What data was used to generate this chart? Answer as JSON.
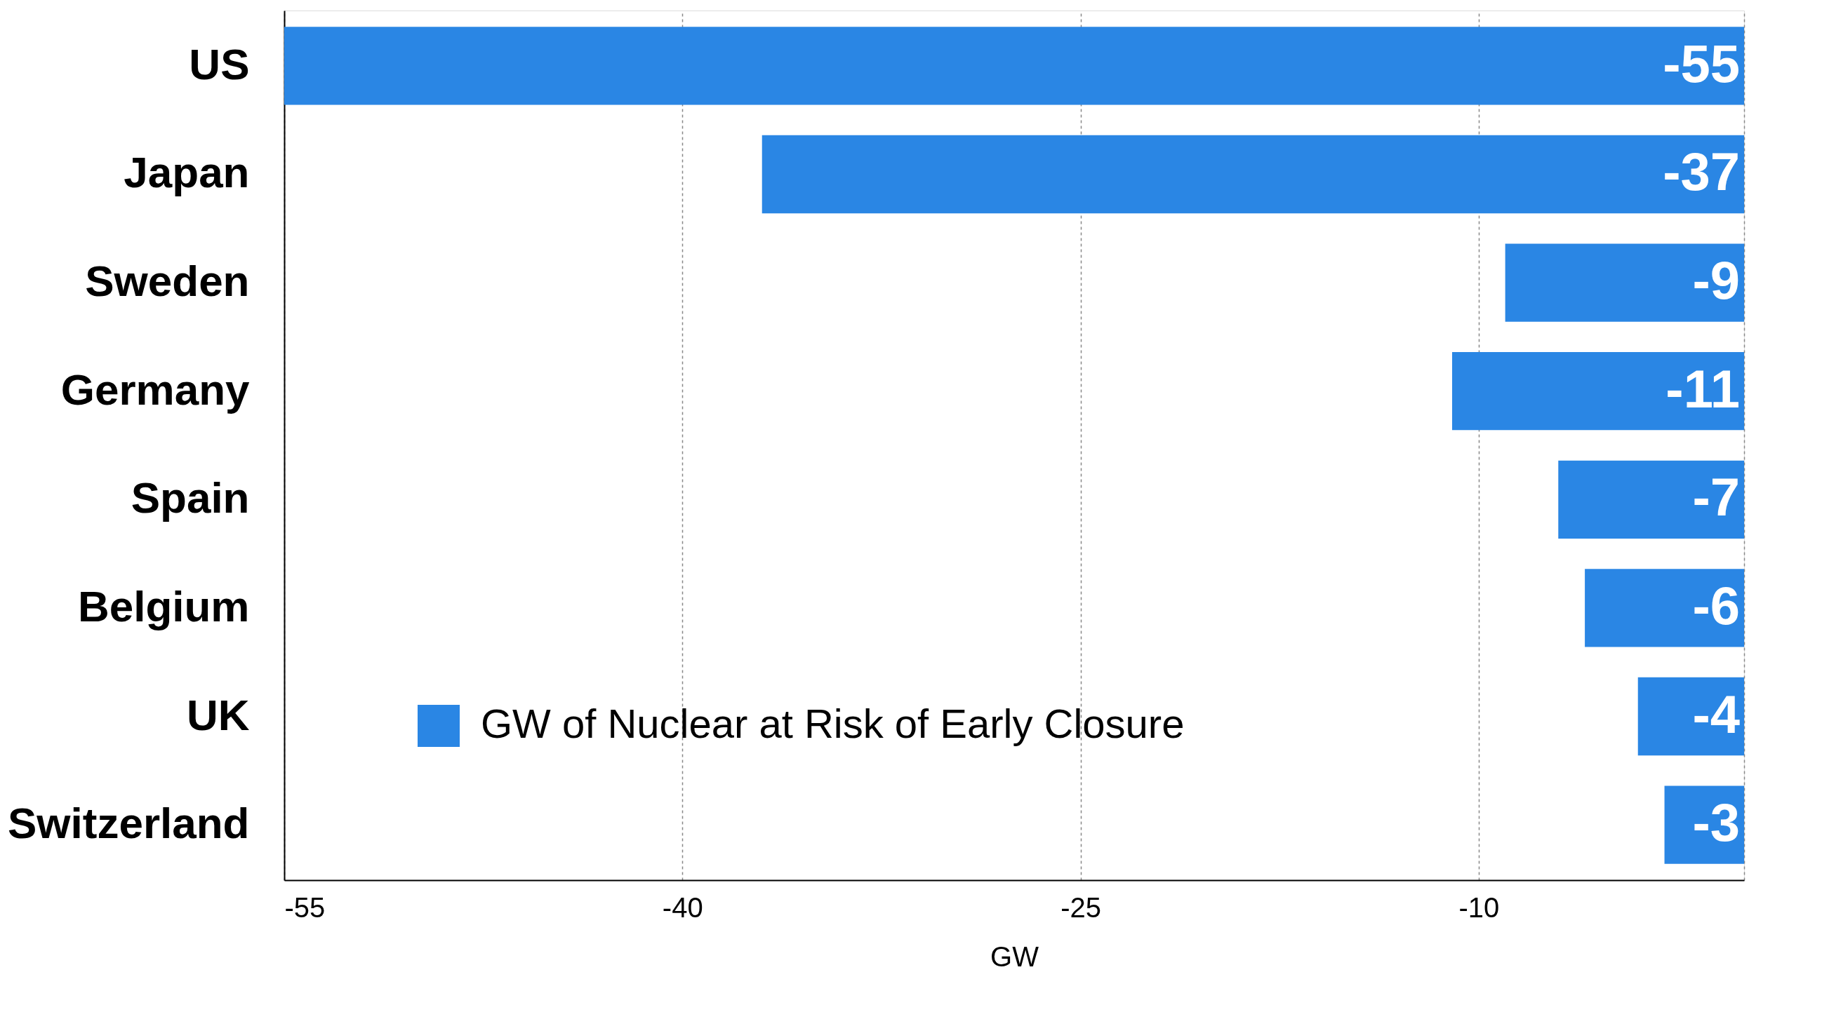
{
  "chart_data": {
    "type": "bar",
    "orientation": "horizontal",
    "xlabel": "GW",
    "categories": [
      "US",
      "Japan",
      "Sweden",
      "Germany",
      "Spain",
      "Belgium",
      "UK",
      "Switzerland"
    ],
    "series": [
      {
        "name": "GW of Nuclear at Risk of Early Closure",
        "color": "#2a86e4",
        "values": [
          -55,
          -37,
          -9,
          -11,
          -7,
          -6,
          -4,
          -3
        ]
      }
    ],
    "xlim": [
      -55,
      0
    ],
    "xticks": [
      -55,
      -40,
      -25,
      -10,
      {
        "value": 0,
        "label": null
      }
    ],
    "grid": "x",
    "legend": "bottom left",
    "data_labels": true
  }
}
